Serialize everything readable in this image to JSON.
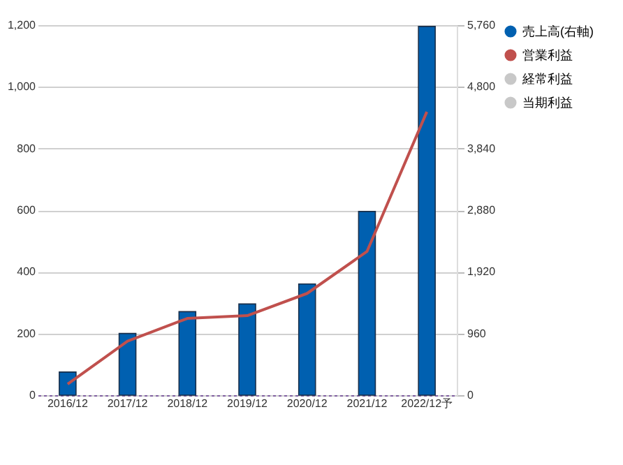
{
  "chart_data": {
    "type": "bar",
    "categories": [
      "2016/12",
      "2017/12",
      "2018/12",
      "2019/12",
      "2020/12",
      "2021/12",
      "2022/12予"
    ],
    "series": [
      {
        "name": "売上高(右軸)",
        "axis": "y2",
        "color": "#0060b0",
        "values": [
          360,
          960,
          1300,
          1420,
          1730,
          2860,
          5740
        ]
      },
      {
        "name": "営業利益",
        "type": "line",
        "axis": "y",
        "color": "#c0504d",
        "values": [
          36,
          175,
          249,
          258,
          330,
          466,
          919
        ]
      },
      {
        "name": "経常利益",
        "type": "line",
        "axis": "y",
        "color": "#c8c8c8",
        "values": [
          null,
          null,
          null,
          null,
          null,
          null,
          null
        ]
      },
      {
        "name": "当期利益",
        "type": "line",
        "axis": "y",
        "color": "#c8c8c8",
        "values": [
          null,
          null,
          null,
          null,
          null,
          null,
          null
        ]
      }
    ],
    "ylim": [
      0,
      1200
    ],
    "yticks": [
      0,
      {
        "value": 200,
        "label": "200"
      },
      {
        "value": 400,
        "label": "400"
      },
      {
        "value": 600,
        "label": "600"
      },
      {
        "value": 800,
        "label": "800"
      },
      {
        "value": 1000,
        "label": "1,000"
      },
      {
        "value": 1200,
        "label": "1,200"
      }
    ],
    "y2lim": [
      0,
      5760
    ],
    "y2ticks": [
      0,
      {
        "value": 960,
        "label": "960"
      },
      {
        "value": 1920,
        "label": "1,920"
      },
      {
        "value": 2880,
        "label": "2,880"
      },
      {
        "value": 3840,
        "label": "3,840"
      },
      {
        "value": 4800,
        "label": "4,800"
      },
      {
        "value": 5760,
        "label": "5,760"
      }
    ],
    "grid": "y",
    "legend": "right"
  }
}
